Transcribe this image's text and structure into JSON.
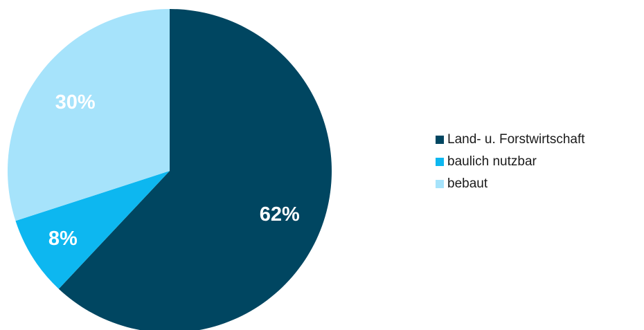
{
  "chart_data": {
    "type": "pie",
    "title": "",
    "categories": [
      "Land- u. Forstwirtschaft",
      "baulich nutzbar",
      "bebaut"
    ],
    "values": [
      62,
      8,
      30
    ],
    "value_labels": [
      "62%",
      "8%",
      "30%"
    ],
    "colors": [
      "#004661",
      "#0db7f0",
      "#a6e3fb"
    ],
    "start_angle_deg": 0,
    "direction": "clockwise",
    "legend_position": "right"
  }
}
